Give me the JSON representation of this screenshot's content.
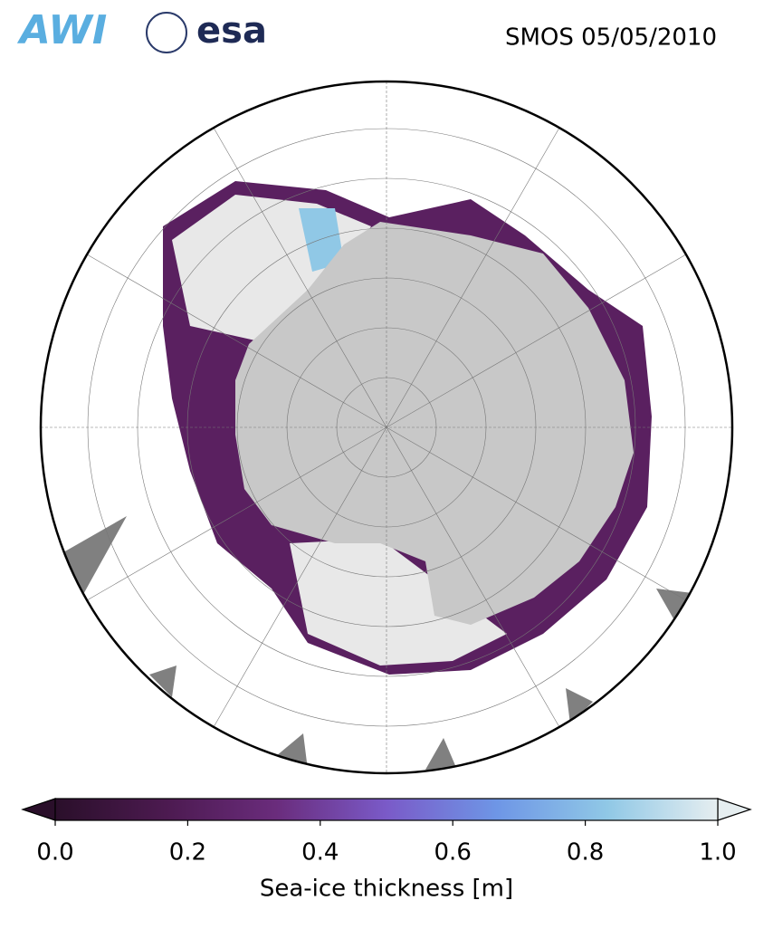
{
  "logos": [
    "AWI",
    "esa"
  ],
  "title": "SMOS 05/05/2010",
  "colorbar": {
    "label": "Sea-ice thickness [m]",
    "clim": [
      0,
      1
    ],
    "ticks": [
      {
        "value": 0,
        "label": "0.0"
      },
      0.2,
      0.4,
      0.6,
      0.8,
      {
        "value": 1,
        "label": "1.0"
      }
    ],
    "colormap": [
      "#2a0f2a",
      "#4c1a50",
      "#6a2c7c",
      "#7a5ac8",
      "#6e96e6",
      "#90c8e6",
      "#e6eef0"
    ],
    "extend": "both"
  }
}
